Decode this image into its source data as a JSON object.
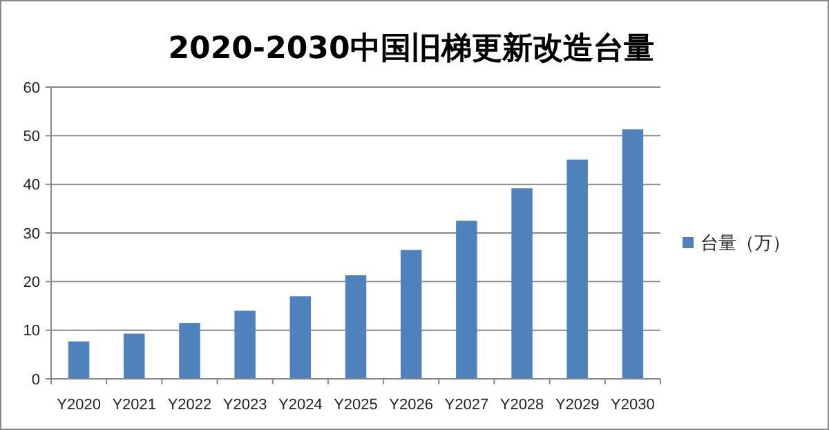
{
  "chart_data": {
    "type": "bar",
    "title": "2020-2030中国旧梯更新改造台量",
    "categories": [
      "Y2020",
      "Y2021",
      "Y2022",
      "Y2023",
      "Y2024",
      "Y2025",
      "Y2026",
      "Y2027",
      "Y2028",
      "Y2029",
      "Y2030"
    ],
    "series": [
      {
        "name": "台量（万）",
        "color": "#4f81bd",
        "values": [
          7.7,
          9.3,
          11.5,
          14.0,
          17.0,
          21.3,
          26.5,
          32.5,
          39.2,
          45.1,
          51.3
        ]
      }
    ],
    "ylim": [
      0,
      60
    ],
    "yticks": [
      0,
      10,
      20,
      30,
      40,
      50,
      60
    ],
    "grid": "y",
    "legend": "right"
  }
}
